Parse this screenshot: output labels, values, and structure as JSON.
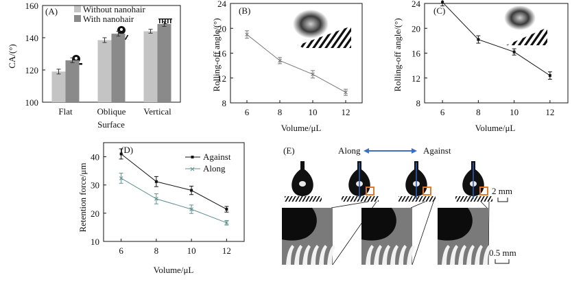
{
  "chart_data": [
    {
      "panel": "(A)",
      "type": "bar",
      "categories": [
        "Flat",
        "Oblique",
        "Vertical"
      ],
      "series": [
        {
          "name": "Without nanohair",
          "color": "#c4c4c4",
          "values": [
            119,
            138.5,
            144
          ],
          "errors": [
            1.5,
            1.5,
            1.2
          ]
        },
        {
          "name": "With nanohair",
          "color": "#8a8a8a",
          "values": [
            126,
            142.5,
            148.5
          ],
          "errors": [
            1.5,
            1.5,
            1.5
          ]
        }
      ],
      "ylabel": "CA/(°)",
      "xlabel": "Surface",
      "ylim": [
        100,
        160
      ],
      "yticks": [
        "100",
        "120",
        "140",
        "160"
      ]
    },
    {
      "panel": "(B)",
      "type": "line",
      "x": [
        6,
        8,
        10,
        12
      ],
      "series": [
        {
          "name": "Rolling-off angle",
          "color": "#777777",
          "values": [
            19,
            14.8,
            12.6,
            9.7
          ],
          "errors": [
            0.6,
            0.5,
            0.6,
            0.5
          ]
        }
      ],
      "xlabel": "Volume/μL",
      "ylabel": "Rolling-off angle/(°)",
      "xlim": [
        5,
        13
      ],
      "ylim": [
        8,
        24
      ],
      "xticks": [
        "6",
        "8",
        "10",
        "12"
      ],
      "yticks": [
        "8",
        "12",
        "16",
        "20",
        "24"
      ]
    },
    {
      "panel": "(C)",
      "type": "line",
      "x": [
        6,
        8,
        10,
        12
      ],
      "series": [
        {
          "name": "Rolling-off angle",
          "color": "#111111",
          "values": [
            24.2,
            18.2,
            16.2,
            12.4
          ],
          "errors": [
            0.6,
            0.6,
            0.5,
            0.6
          ]
        }
      ],
      "xlabel": "Volume/μL",
      "ylabel": "Rolling-off angle/(°)",
      "xlim": [
        5,
        13
      ],
      "ylim": [
        8,
        24
      ],
      "xticks": [
        "6",
        "8",
        "10",
        "12"
      ],
      "yticks": [
        "8",
        "12",
        "16",
        "20",
        "24"
      ]
    },
    {
      "panel": "(D)",
      "type": "line",
      "x": [
        6,
        8,
        10,
        12
      ],
      "series": [
        {
          "name": "Against",
          "color": "#111111",
          "marker": "square",
          "values": [
            41,
            31.2,
            28.1,
            21.4
          ],
          "errors": [
            1.8,
            1.8,
            1.5,
            1.0
          ]
        },
        {
          "name": "Along",
          "color": "#5f8f8f",
          "marker": "x",
          "values": [
            32.4,
            25.1,
            21.4,
            16.6
          ],
          "errors": [
            1.8,
            1.8,
            1.5,
            0.8
          ]
        }
      ],
      "xlabel": "Volume/μL",
      "ylabel": "Retention force/μm",
      "xlim": [
        5,
        13
      ],
      "ylim": [
        10,
        45
      ],
      "xticks": [
        "6",
        "8",
        "10",
        "12"
      ],
      "yticks": [
        "10",
        "20",
        "30",
        "40"
      ]
    }
  ],
  "panel_e": {
    "label": "(E)",
    "along": "Along",
    "against": "Against",
    "scale_top": "2 mm",
    "scale_bottom": "0.5 mm"
  }
}
